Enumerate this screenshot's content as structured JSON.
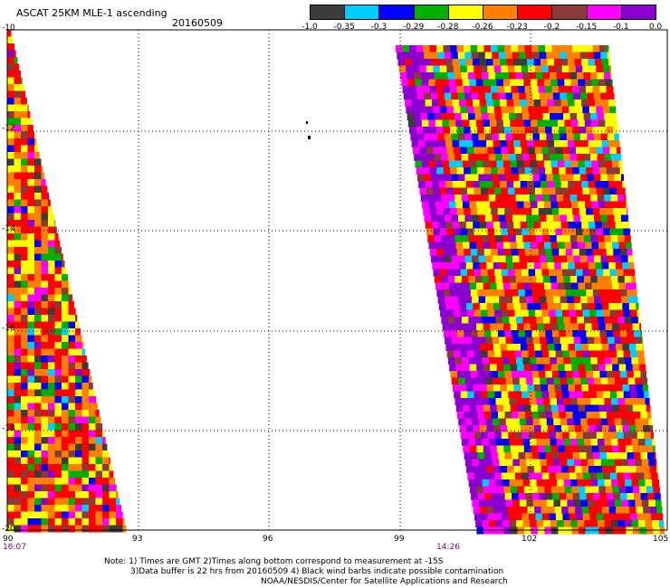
{
  "header": {
    "title": "ASCAT 25KM MLE-1 ascending",
    "date": "20160509"
  },
  "colorbar": {
    "colors": [
      "#3c3c3c",
      "#00ccff",
      "#0000ff",
      "#00b000",
      "#ffff00",
      "#ff8000",
      "#ff0000",
      "#8b3a3a",
      "#ff00ff",
      "#8a00d0"
    ],
    "labels": [
      "-1.0",
      "-0.35",
      "-0.3",
      "-0.29",
      "-0.28",
      "-0.26",
      "-0.23",
      "-0.2",
      "-0.15",
      "-0.1",
      "0.0"
    ]
  },
  "axes": {
    "lat_labels": [
      "-10",
      "-12",
      "-14",
      "-16",
      "-18",
      "-20"
    ],
    "lon_labels": [
      "90",
      "93",
      "96",
      "99",
      "102",
      "105"
    ]
  },
  "times": {
    "left": "16:07",
    "right": "14:26"
  },
  "notes": [
    "Note: 1) Times are GMT 2)Times along bottom correspond to measurement at -15S",
    "3)Data buffer is 22 hrs from 20160509 4) Black wind barbs indicate possible contamination",
    "NOAA/NESDIS/Center for Satellite Applications and Research"
  ]
}
